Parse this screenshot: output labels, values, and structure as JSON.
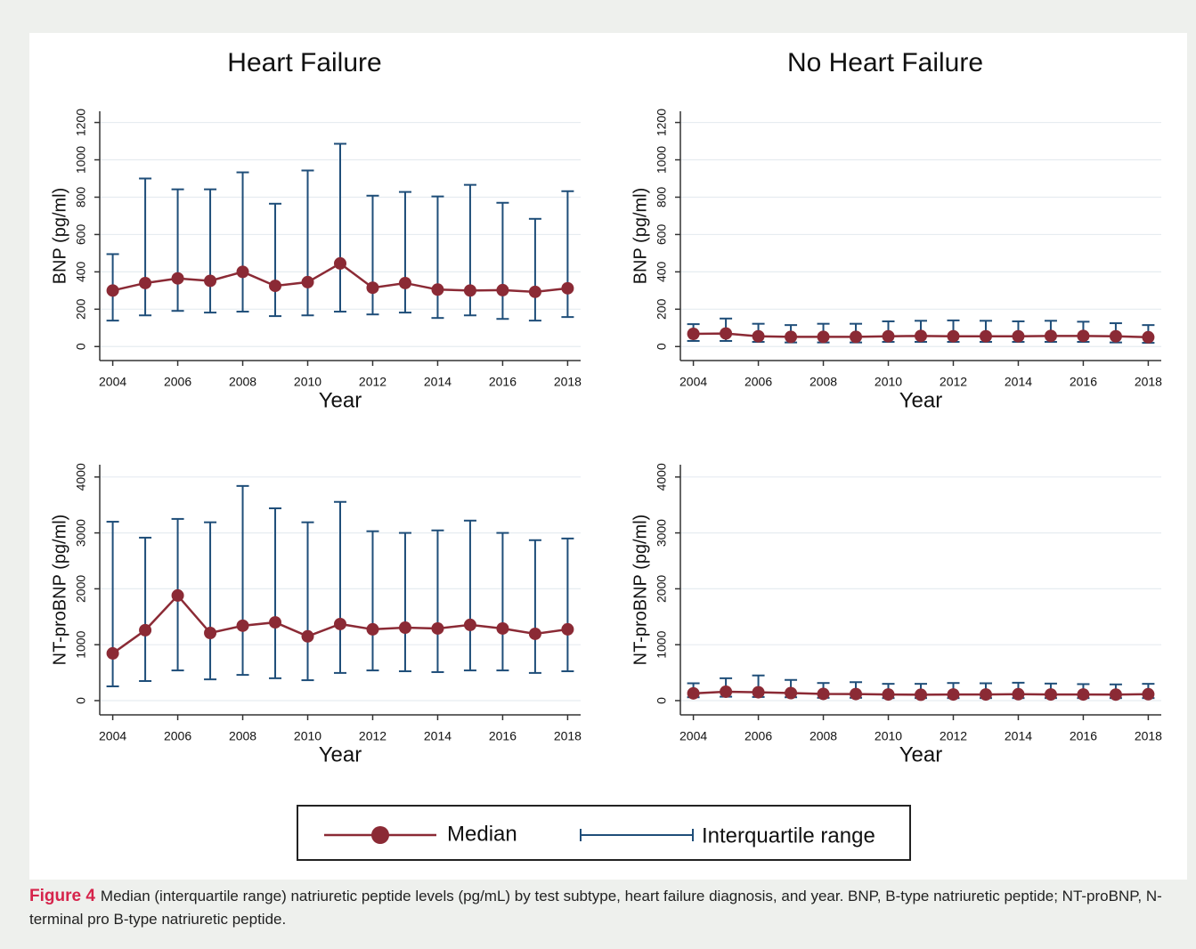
{
  "chart_data": [
    {
      "type": "errorbar",
      "title": "Heart Failure",
      "xlabel": "Year",
      "ylabel": "BNP (pg/ml)",
      "x": [
        2004,
        2005,
        2006,
        2007,
        2008,
        2009,
        2010,
        2011,
        2012,
        2013,
        2014,
        2015,
        2016,
        2017,
        2018
      ],
      "series": [
        {
          "name": "Median",
          "color": "#8b2a35",
          "values": [
            300,
            340,
            365,
            352,
            400,
            325,
            345,
            445,
            315,
            340,
            305,
            300,
            302,
            293,
            312
          ]
        },
        {
          "name": "Interquartile range",
          "color": "#1f4e79",
          "low": [
            139,
            167,
            191,
            182,
            187,
            163,
            167,
            187,
            172,
            182,
            153,
            167,
            148,
            139,
            158
          ],
          "high": [
            495,
            900,
            842,
            842,
            933,
            765,
            943,
            1086,
            808,
            828,
            804,
            866,
            770,
            684,
            832
          ]
        }
      ],
      "xlim": [
        2003.6,
        2018.4
      ],
      "xticks": [
        2004,
        2006,
        2008,
        2010,
        2012,
        2014,
        2016,
        2018
      ],
      "ylim": [
        -75,
        1260
      ],
      "yticks": [
        0,
        200,
        400,
        600,
        800,
        1000,
        1200
      ],
      "grid": true
    },
    {
      "type": "errorbar",
      "title": "No Heart Failure",
      "xlabel": "Year",
      "ylabel": "BNP (pg/ml)",
      "x": [
        2004,
        2005,
        2006,
        2007,
        2008,
        2009,
        2010,
        2011,
        2012,
        2013,
        2014,
        2015,
        2016,
        2017,
        2018
      ],
      "series": [
        {
          "name": "Median",
          "color": "#8b2a35",
          "values": [
            68,
            70,
            55,
            52,
            52,
            52,
            55,
            57,
            55,
            55,
            55,
            57,
            57,
            55,
            50
          ]
        },
        {
          "name": "Interquartile range",
          "color": "#1f4e79",
          "low": [
            30,
            30,
            25,
            22,
            22,
            22,
            25,
            25,
            25,
            25,
            25,
            25,
            25,
            22,
            20
          ],
          "high": [
            120,
            150,
            122,
            115,
            122,
            122,
            135,
            138,
            140,
            138,
            135,
            138,
            133,
            125,
            115
          ]
        }
      ],
      "xlim": [
        2003.6,
        2018.4
      ],
      "xticks": [
        2004,
        2006,
        2008,
        2010,
        2012,
        2014,
        2016,
        2018
      ],
      "ylim": [
        -75,
        1260
      ],
      "yticks": [
        0,
        200,
        400,
        600,
        800,
        1000,
        1200
      ],
      "grid": true
    },
    {
      "type": "errorbar",
      "xlabel": "Year",
      "ylabel": "NT-proBNP (pg/ml)",
      "x": [
        2004,
        2005,
        2006,
        2007,
        2008,
        2009,
        2010,
        2011,
        2012,
        2013,
        2014,
        2015,
        2016,
        2017,
        2018
      ],
      "series": [
        {
          "name": "Median",
          "color": "#8b2a35",
          "values": [
            845,
            1260,
            1880,
            1210,
            1340,
            1400,
            1150,
            1370,
            1275,
            1305,
            1290,
            1355,
            1290,
            1195,
            1275
          ]
        },
        {
          "name": "Interquartile range",
          "color": "#1f4e79",
          "low": [
            255,
            350,
            540,
            380,
            460,
            400,
            365,
            495,
            540,
            525,
            510,
            540,
            540,
            495,
            525
          ],
          "high": [
            3200,
            2915,
            3250,
            3190,
            3840,
            3440,
            3190,
            3555,
            3030,
            3000,
            3045,
            3220,
            3000,
            2870,
            2900
          ]
        }
      ],
      "xlim": [
        2003.6,
        2018.4
      ],
      "xticks": [
        2004,
        2006,
        2008,
        2010,
        2012,
        2014,
        2016,
        2018
      ],
      "ylim": [
        -255,
        4220
      ],
      "yticks": [
        0,
        1000,
        2000,
        3000,
        4000
      ],
      "grid": true
    },
    {
      "type": "errorbar",
      "xlabel": "Year",
      "ylabel": "NT-proBNP (pg/ml)",
      "x": [
        2004,
        2005,
        2006,
        2007,
        2008,
        2009,
        2010,
        2011,
        2012,
        2013,
        2014,
        2015,
        2016,
        2017,
        2018
      ],
      "series": [
        {
          "name": "Median",
          "color": "#8b2a35",
          "values": [
            130,
            160,
            150,
            135,
            120,
            118,
            110,
            105,
            110,
            110,
            115,
            110,
            110,
            108,
            115
          ]
        },
        {
          "name": "Interquartile range",
          "color": "#1f4e79",
          "low": [
            60,
            70,
            65,
            60,
            50,
            50,
            45,
            45,
            45,
            45,
            45,
            45,
            45,
            45,
            45
          ],
          "high": [
            310,
            400,
            450,
            370,
            315,
            330,
            300,
            300,
            315,
            310,
            320,
            305,
            295,
            290,
            300
          ]
        }
      ],
      "xlim": [
        2003.6,
        2018.4
      ],
      "xticks": [
        2004,
        2006,
        2008,
        2010,
        2012,
        2014,
        2016,
        2018
      ],
      "ylim": [
        -255,
        4220
      ],
      "yticks": [
        0,
        1000,
        2000,
        3000,
        4000
      ],
      "grid": true
    }
  ],
  "caption": {
    "label": "Figure 4",
    "text": "Median (interquartile range) natriuretic peptide levels (pg/mL) by test subtype, heart failure diagnosis, and year. BNP, B-type natriuretic peptide; NT-proBNP, N-terminal pro B-type natriuretic peptide."
  }
}
